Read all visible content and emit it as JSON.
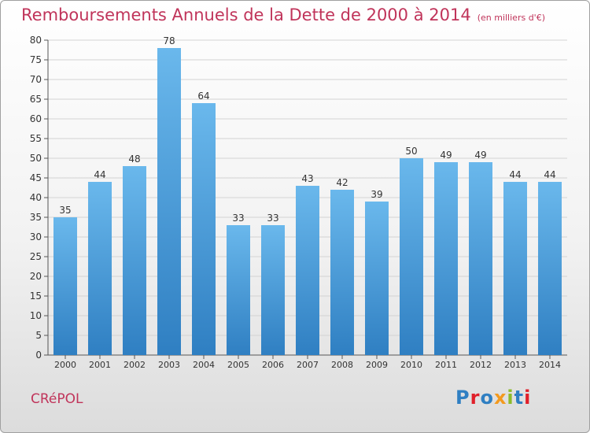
{
  "header": {
    "title": "Remboursements Annuels de la Dette de 2000 à 2014",
    "subtitle": "(en milliers d'€)"
  },
  "footer": {
    "commune": "CRéPOL",
    "logo": "Proxiti"
  },
  "colors": {
    "title": "#c0345a",
    "bar_top": "#6ab8ec",
    "bar_bottom": "#2f7fc2",
    "grid": "#d3d3d3",
    "logo_letters": [
      "#2f7fc2",
      "#e0202a",
      "#2f7fc2",
      "#f39a1e",
      "#8dbb2a",
      "#2f7fc2",
      "#e0202a"
    ]
  },
  "chart_data": {
    "type": "bar",
    "categories": [
      "2000",
      "2001",
      "2002",
      "2003",
      "2004",
      "2005",
      "2006",
      "2007",
      "2008",
      "2009",
      "2010",
      "2011",
      "2012",
      "2013",
      "2014"
    ],
    "values": [
      35,
      44,
      48,
      78,
      64,
      33,
      33,
      43,
      42,
      39,
      50,
      49,
      49,
      44,
      44
    ],
    "ylim": [
      0,
      80
    ],
    "yticks": [
      0,
      5,
      10,
      15,
      20,
      25,
      30,
      35,
      40,
      45,
      50,
      55,
      60,
      65,
      70,
      75,
      80
    ],
    "grid": true,
    "data_labels": true
  }
}
